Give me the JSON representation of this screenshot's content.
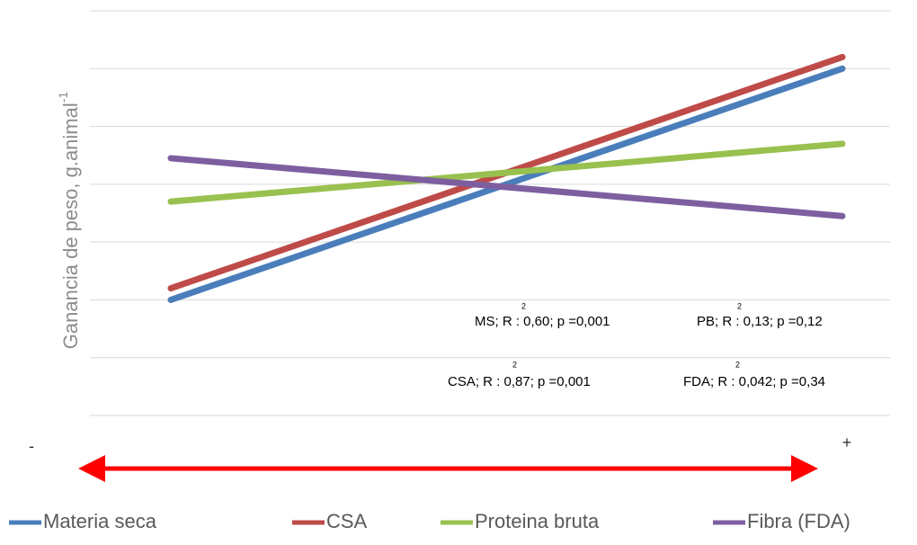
{
  "chart_data": {
    "type": "line",
    "ylabel": "Ganancia de peso, g.animal",
    "ylabel_sup": "-1",
    "categories": [
      "-",
      "+"
    ],
    "series": [
      {
        "name": "Materia seca",
        "color": "#4a7ebb",
        "values": [
          2.0,
          6.0
        ]
      },
      {
        "name": "CSA",
        "color": "#be4b48",
        "values": [
          2.2,
          6.2
        ]
      },
      {
        "name": "Proteina bruta",
        "color": "#98c14f",
        "values": [
          3.7,
          4.7
        ]
      },
      {
        "name": "Fibra (FDA)",
        "color": "#7d5fa0",
        "values": [
          4.45,
          3.45
        ]
      }
    ],
    "ylim": [
      0,
      7
    ],
    "yticks": [
      0,
      1,
      2,
      3,
      4,
      5,
      6,
      7
    ],
    "grid": true,
    "annotations": [
      {
        "text": "MS; R : 0,60; p =0,001",
        "sup": "2"
      },
      {
        "text": "PB; R : 0,13; p =0,12",
        "sup": "2"
      },
      {
        "text": "CSA; R : 0,87; p =0,001",
        "sup": "2"
      },
      {
        "text": "FDA; R : 0,042; p =0,34",
        "sup": "2"
      }
    ]
  }
}
